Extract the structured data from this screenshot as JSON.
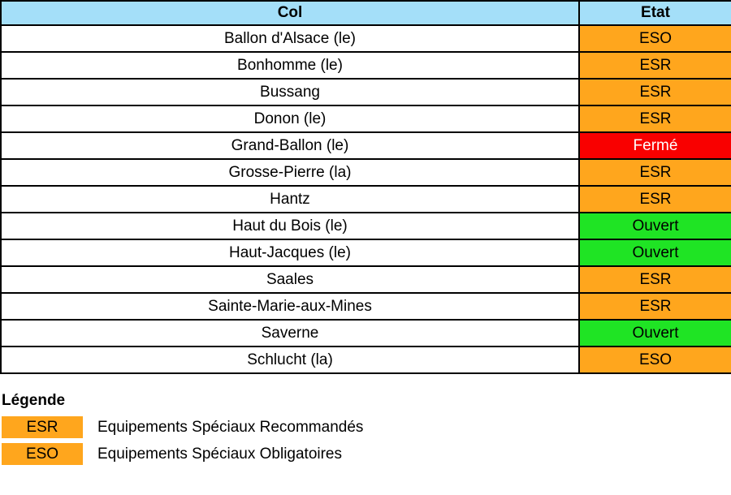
{
  "table": {
    "headers": {
      "col": "Col",
      "etat": "Etat"
    },
    "rows": [
      {
        "col": "Ballon d'Alsace (le)",
        "etat": "ESO",
        "status_key": "eso"
      },
      {
        "col": "Bonhomme (le)",
        "etat": "ESR",
        "status_key": "esr"
      },
      {
        "col": "Bussang",
        "etat": "ESR",
        "status_key": "esr"
      },
      {
        "col": "Donon (le)",
        "etat": "ESR",
        "status_key": "esr"
      },
      {
        "col": "Grand-Ballon (le)",
        "etat": "Fermé",
        "status_key": "ferme"
      },
      {
        "col": "Grosse-Pierre (la)",
        "etat": "ESR",
        "status_key": "esr"
      },
      {
        "col": "Hantz",
        "etat": "ESR",
        "status_key": "esr"
      },
      {
        "col": "Haut du Bois (le)",
        "etat": "Ouvert",
        "status_key": "ouvert"
      },
      {
        "col": "Haut-Jacques (le)",
        "etat": "Ouvert",
        "status_key": "ouvert"
      },
      {
        "col": "Saales",
        "etat": "ESR",
        "status_key": "esr"
      },
      {
        "col": "Sainte-Marie-aux-Mines",
        "etat": "ESR",
        "status_key": "esr"
      },
      {
        "col": "Saverne",
        "etat": "Ouvert",
        "status_key": "ouvert"
      },
      {
        "col": "Schlucht (la)",
        "etat": "ESO",
        "status_key": "eso"
      }
    ]
  },
  "legend": {
    "title": "Légende",
    "items": [
      {
        "code": "ESR",
        "label": "Equipements Spéciaux Recommandés",
        "status_key": "esr"
      },
      {
        "code": "ESO",
        "label": "Equipements Spéciaux Obligatoires",
        "status_key": "eso"
      }
    ]
  },
  "colors": {
    "header": "#A4DFF9",
    "esr": "#FFA61D",
    "eso": "#FFA61D",
    "ferme": "#F90000",
    "ouvert": "#1FE424",
    "ferme_text": "#FFFFFF",
    "border": "#000000"
  },
  "chart_data": {
    "type": "table",
    "columns": [
      "Col",
      "Etat"
    ],
    "rows": [
      [
        "Ballon d'Alsace (le)",
        "ESO"
      ],
      [
        "Bonhomme (le)",
        "ESR"
      ],
      [
        "Bussang",
        "ESR"
      ],
      [
        "Donon (le)",
        "ESR"
      ],
      [
        "Grand-Ballon (le)",
        "Fermé"
      ],
      [
        "Grosse-Pierre (la)",
        "ESR"
      ],
      [
        "Hantz",
        "ESR"
      ],
      [
        "Haut du Bois (le)",
        "Ouvert"
      ],
      [
        "Haut-Jacques (le)",
        "Ouvert"
      ],
      [
        "Saales",
        "ESR"
      ],
      [
        "Sainte-Marie-aux-Mines",
        "ESR"
      ],
      [
        "Saverne",
        "Ouvert"
      ],
      [
        "Schlucht (la)",
        "ESO"
      ]
    ],
    "legend": [
      [
        "ESR",
        "Equipements Spéciaux Recommandés"
      ],
      [
        "ESO",
        "Equipements Spéciaux Obligatoires"
      ]
    ]
  }
}
